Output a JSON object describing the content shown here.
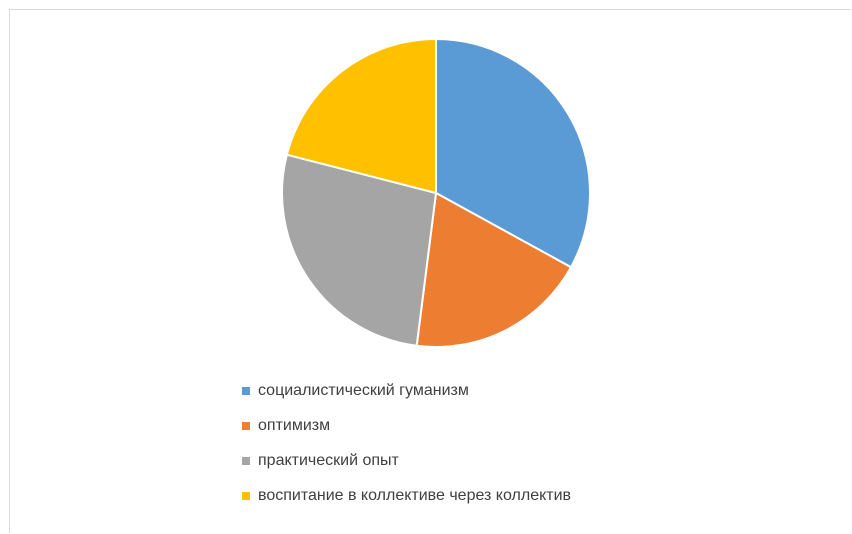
{
  "chart_data": {
    "type": "pie",
    "title": "",
    "categories": [
      "социалистический гуманизм",
      "оптимизм",
      "практический опыт",
      "воспитание в коллективе через коллектив"
    ],
    "values": [
      33,
      19,
      27,
      21
    ],
    "colors": [
      "#5b9bd5",
      "#ed7d31",
      "#a5a5a5",
      "#ffc000"
    ],
    "start_angle": "12 o'clock",
    "direction": "clockwise",
    "legend": "bottom"
  },
  "legend": {
    "items": [
      {
        "label": "социалистический гуманизм",
        "color": "#5b9bd5"
      },
      {
        "label": "оптимизм",
        "color": "#ed7d31"
      },
      {
        "label": "практический опыт",
        "color": "#a5a5a5"
      },
      {
        "label": "воспитание в коллективе через коллектив",
        "color": "#ffc000"
      }
    ]
  }
}
